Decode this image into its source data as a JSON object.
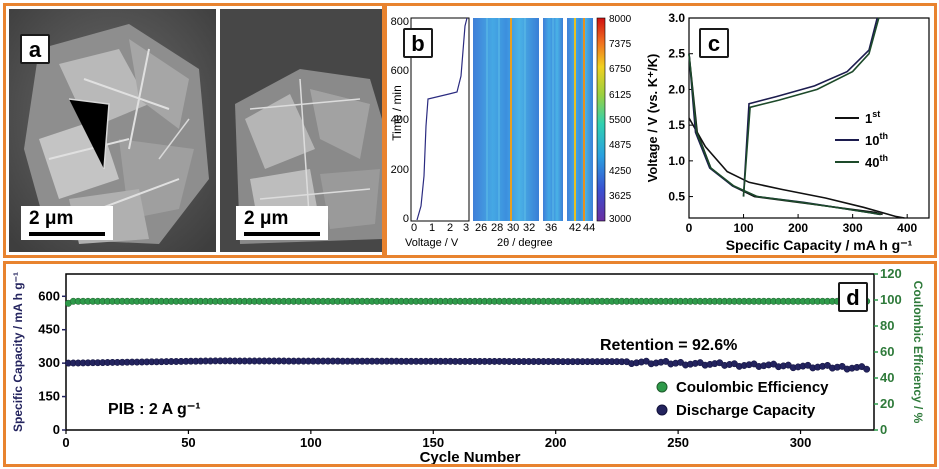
{
  "panel_a": {
    "label": "a",
    "scalebar_left": "2 μm",
    "scalebar_right": "2 μm"
  },
  "panel_b": {
    "label": "b",
    "y_label": "Time / min",
    "y_ticks": [
      "0",
      "200",
      "400",
      "600",
      "800"
    ],
    "voltage_label": "Voltage / V",
    "voltage_ticks": [
      "0",
      "1",
      "2",
      "3"
    ],
    "theta_label": "2θ / degree",
    "theta_ticks_1": [
      "26",
      "28",
      "30",
      "32"
    ],
    "theta_ticks_2": [
      "36"
    ],
    "theta_ticks_3": [
      "42",
      "44"
    ],
    "colorbar_ticks": [
      "8000",
      "7375",
      "6750",
      "6125",
      "5500",
      "4875",
      "4250",
      "3625",
      "3000"
    ]
  },
  "panel_c": {
    "label": "c",
    "ylabel": "Voltage / V (vs. K⁺/K)",
    "xlabel": "Specific Capacity / mA h g⁻¹",
    "y_ticks": [
      "0.5",
      "1.0",
      "1.5",
      "2.0",
      "2.5",
      "3.0"
    ],
    "x_ticks": [
      "0",
      "100",
      "200",
      "300",
      "400"
    ],
    "legend": [
      {
        "base": "1",
        "sup": "st",
        "color": "#111111"
      },
      {
        "base": "10",
        "sup": "th",
        "color": "#1c1c4e"
      },
      {
        "base": "40",
        "sup": "th",
        "color": "#1d4a2a"
      }
    ]
  },
  "panel_d": {
    "label": "d",
    "ylabel_left": "Specific Capacity / mA h g⁻¹",
    "ylabel_right": "Coulombic Efficiency / %",
    "xlabel": "Cycle Number",
    "annotation_retention": "Retention = 92.6%",
    "annotation_pib": "PIB : 2 A g⁻¹",
    "legend_ce": "Coulombic Efficiency",
    "legend_dc": "Discharge Capacity",
    "y_ticks_left": [
      "0",
      "150",
      "300",
      "450",
      "600"
    ],
    "y_ticks_right": [
      "0",
      "20",
      "40",
      "60",
      "80",
      "100",
      "120"
    ],
    "x_ticks": [
      "0",
      "50",
      "100",
      "150",
      "200",
      "250",
      "300"
    ]
  },
  "chart_data": [
    {
      "type": "line",
      "panel": "c",
      "xlabel": "Specific Capacity / mA h g⁻¹",
      "ylabel": "Voltage / V (vs. K⁺/K)",
      "xlim": [
        0,
        440
      ],
      "ylim": [
        0.2,
        3.0
      ],
      "series": [
        {
          "name": "1st",
          "color": "#111111",
          "segments": [
            [
              [
                0,
                1.6
              ],
              [
                30,
                1.2
              ],
              [
                70,
                0.85
              ],
              [
                110,
                0.7
              ],
              [
                170,
                0.6
              ],
              [
                250,
                0.48
              ],
              [
                320,
                0.35
              ],
              [
                380,
                0.22
              ],
              [
                395,
                0.2
              ]
            ],
            [
              [
                0,
                2.5
              ],
              [
                15,
                1.4
              ],
              [
                40,
                0.9
              ],
              [
                80,
                0.65
              ],
              [
                120,
                0.5
              ],
              [
                200,
                0.42
              ],
              [
                280,
                0.34
              ],
              [
                340,
                0.28
              ],
              [
                355,
                0.25
              ]
            ]
          ]
        },
        {
          "name": "10th",
          "color": "#1c1c4e",
          "segments": [
            [
              [
                0,
                2.5
              ],
              [
                12,
                1.4
              ],
              [
                38,
                0.9
              ],
              [
                80,
                0.65
              ],
              [
                125,
                0.5
              ],
              [
                210,
                0.42
              ],
              [
                285,
                0.33
              ],
              [
                335,
                0.27
              ],
              [
                350,
                0.25
              ]
            ],
            [
              [
                100,
                0.5
              ],
              [
                110,
                1.8
              ],
              [
                160,
                1.9
              ],
              [
                230,
                2.05
              ],
              [
                290,
                2.25
              ],
              [
                330,
                2.55
              ],
              [
                345,
                3.0
              ]
            ]
          ]
        },
        {
          "name": "40th",
          "color": "#1d4a2a",
          "segments": [
            [
              [
                0,
                2.5
              ],
              [
                14,
                1.4
              ],
              [
                40,
                0.9
              ],
              [
                82,
                0.65
              ],
              [
                125,
                0.5
              ],
              [
                205,
                0.42
              ],
              [
                285,
                0.33
              ],
              [
                335,
                0.27
              ],
              [
                352,
                0.25
              ]
            ],
            [
              [
                100,
                0.5
              ],
              [
                112,
                1.75
              ],
              [
                165,
                1.85
              ],
              [
                235,
                2.0
              ],
              [
                300,
                2.25
              ],
              [
                330,
                2.5
              ],
              [
                348,
                3.0
              ]
            ]
          ]
        }
      ]
    },
    {
      "type": "scatter",
      "panel": "d",
      "xlabel": "Cycle Number",
      "ylabel": "Specific Capacity / mA h g⁻¹",
      "y2label": "Coulombic Efficiency / %",
      "xlim": [
        0,
        330
      ],
      "ylim": [
        0,
        700
      ],
      "y2lim": [
        0,
        120
      ],
      "series": [
        {
          "name": "Coulombic Efficiency",
          "axis": "right",
          "color": "#2e9a4a",
          "value": 99
        },
        {
          "name": "Discharge Capacity",
          "axis": "left",
          "color": "#23235e",
          "value_start": 300,
          "value_peak": 310,
          "value_end": 278
        }
      ],
      "annotations": [
        "Retention = 92.6%",
        "PIB : 2 A g⁻¹"
      ]
    }
  ]
}
